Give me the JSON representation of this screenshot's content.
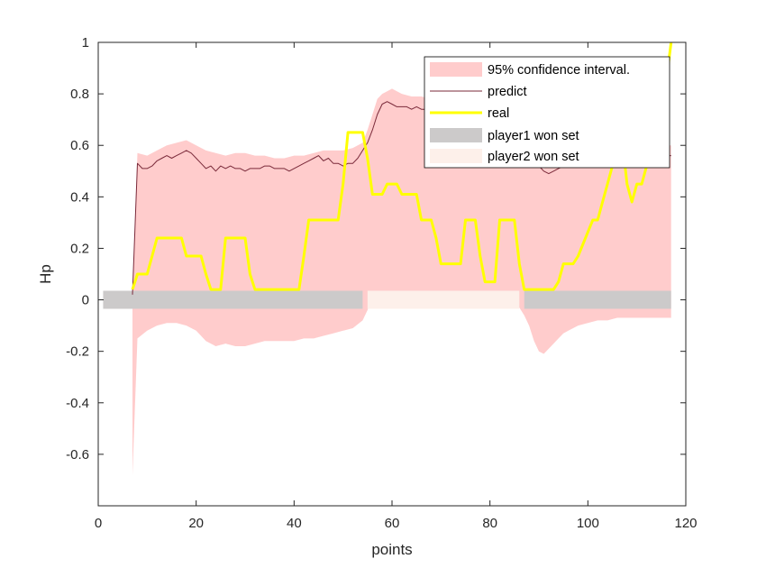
{
  "chart_data": {
    "type": "line",
    "xlabel": "points",
    "ylabel": "Hp",
    "xlim": [
      0,
      120
    ],
    "ylim": [
      -0.8,
      1
    ],
    "xticks": [
      0,
      20,
      40,
      60,
      80,
      100,
      120
    ],
    "yticks": [
      1,
      0.8,
      0.6,
      0.4,
      0.2,
      0,
      -0.2,
      -0.4,
      -0.6
    ],
    "xtick_labels": [
      "0",
      "20",
      "40",
      "60",
      "80",
      "100",
      "120"
    ],
    "ytick_labels": [
      "1",
      "0.8",
      "0.6",
      "0.4",
      "0.2",
      "0",
      "-0.2",
      "-0.4",
      "-0.6"
    ],
    "grid": false,
    "legend_position": "top-right",
    "colors": {
      "confidence": "#ffcccc",
      "predict": "#7a2a3a",
      "real": "#ffff00",
      "player1": "#cccaca",
      "player2": "#fdf0ea"
    },
    "legend": {
      "confidence": "95% confidence interval.",
      "predict": "predict",
      "real": "real",
      "player1": "player1 won set",
      "player2": "player2 won set"
    },
    "series": [
      {
        "key": "predict",
        "x": [
          7,
          8,
          9,
          10,
          11,
          12,
          13,
          14,
          15,
          16,
          17,
          18,
          19,
          20,
          21,
          22,
          23,
          24,
          25,
          26,
          27,
          28,
          29,
          30,
          31,
          32,
          33,
          34,
          35,
          36,
          37,
          38,
          39,
          40,
          41,
          42,
          43,
          44,
          45,
          46,
          47,
          48,
          49,
          50,
          51,
          52,
          53,
          54,
          55,
          56,
          57,
          58,
          59,
          60,
          61,
          62,
          63,
          64,
          65,
          66,
          67,
          68,
          69,
          70,
          71,
          72,
          73,
          74,
          75,
          76,
          77,
          78,
          79,
          80,
          81,
          82,
          83,
          84,
          85,
          86,
          87,
          88,
          89,
          90,
          91,
          92,
          93,
          94,
          95,
          96,
          97,
          98,
          99,
          100,
          101,
          102,
          103,
          104,
          105,
          106,
          107,
          108,
          109,
          110,
          111,
          112,
          113,
          114,
          115,
          116,
          117
        ],
        "y": [
          0.02,
          0.53,
          0.51,
          0.51,
          0.52,
          0.54,
          0.55,
          0.56,
          0.55,
          0.56,
          0.57,
          0.58,
          0.57,
          0.55,
          0.53,
          0.51,
          0.52,
          0.5,
          0.52,
          0.51,
          0.52,
          0.51,
          0.51,
          0.5,
          0.51,
          0.51,
          0.51,
          0.52,
          0.52,
          0.51,
          0.51,
          0.51,
          0.5,
          0.51,
          0.52,
          0.53,
          0.54,
          0.55,
          0.56,
          0.54,
          0.55,
          0.53,
          0.53,
          0.52,
          0.53,
          0.53,
          0.55,
          0.58,
          0.61,
          0.66,
          0.72,
          0.76,
          0.77,
          0.76,
          0.75,
          0.75,
          0.75,
          0.74,
          0.75,
          0.74,
          0.74,
          0.73,
          0.72,
          0.72,
          0.71,
          0.7,
          0.7,
          0.69,
          0.68,
          0.67,
          0.67,
          0.66,
          0.65,
          0.65,
          0.64,
          0.63,
          0.62,
          0.62,
          0.61,
          0.6,
          0.58,
          0.56,
          0.54,
          0.52,
          0.5,
          0.49,
          0.5,
          0.51,
          0.52,
          0.52,
          0.53,
          0.53,
          0.54,
          0.54,
          0.55,
          0.55,
          0.55,
          0.56,
          0.56,
          0.56,
          0.56,
          0.55,
          0.55,
          0.54,
          0.55,
          0.55,
          0.55,
          0.56,
          0.56,
          0.56,
          0.56
        ]
      },
      {
        "key": "real",
        "x": [
          7,
          8,
          10,
          11,
          12,
          17,
          18,
          21,
          22,
          23,
          25,
          26,
          27,
          30,
          31,
          32,
          33,
          41,
          42,
          43,
          49,
          50,
          51,
          54,
          55,
          56,
          58,
          59,
          61,
          62,
          65,
          66,
          68,
          69,
          70,
          71,
          74,
          75,
          77,
          78,
          79,
          81,
          82,
          85,
          86,
          87,
          88,
          91,
          92,
          93,
          94,
          95,
          97,
          98,
          101,
          102,
          103,
          104,
          105,
          106,
          107,
          108,
          109,
          110,
          111,
          112,
          113,
          114,
          115,
          116,
          117
        ],
        "y": [
          0.04,
          0.1,
          0.1,
          0.17,
          0.24,
          0.24,
          0.17,
          0.17,
          0.1,
          0.04,
          0.04,
          0.24,
          0.24,
          0.24,
          0.1,
          0.04,
          0.04,
          0.04,
          0.17,
          0.31,
          0.31,
          0.45,
          0.65,
          0.65,
          0.55,
          0.41,
          0.41,
          0.45,
          0.45,
          0.41,
          0.41,
          0.31,
          0.31,
          0.24,
          0.14,
          0.14,
          0.14,
          0.31,
          0.31,
          0.17,
          0.07,
          0.07,
          0.31,
          0.31,
          0.14,
          0.04,
          0.04,
          0.04,
          0.04,
          0.04,
          0.07,
          0.14,
          0.14,
          0.17,
          0.31,
          0.31,
          0.38,
          0.45,
          0.52,
          0.62,
          0.62,
          0.45,
          0.38,
          0.45,
          0.45,
          0.52,
          0.58,
          0.65,
          0.72,
          0.85,
          1.0
        ]
      }
    ],
    "confidence_interval": {
      "x": [
        7,
        8,
        10,
        12,
        14,
        16,
        18,
        20,
        22,
        24,
        26,
        28,
        30,
        32,
        34,
        36,
        38,
        40,
        42,
        44,
        46,
        48,
        50,
        52,
        54,
        55,
        56,
        57,
        58,
        59,
        60,
        62,
        64,
        66,
        68,
        70,
        72,
        74,
        76,
        78,
        80,
        82,
        84,
        86,
        87,
        88,
        89,
        90,
        91,
        92,
        93,
        94,
        95,
        96,
        98,
        100,
        102,
        104,
        106,
        108,
        110,
        112,
        114,
        116,
        117
      ],
      "upper": [
        0.03,
        0.57,
        0.56,
        0.58,
        0.6,
        0.61,
        0.62,
        0.6,
        0.58,
        0.57,
        0.56,
        0.57,
        0.57,
        0.56,
        0.56,
        0.55,
        0.55,
        0.56,
        0.56,
        0.57,
        0.58,
        0.58,
        0.58,
        0.59,
        0.61,
        0.66,
        0.72,
        0.78,
        0.8,
        0.81,
        0.82,
        0.8,
        0.79,
        0.79,
        0.78,
        0.77,
        0.76,
        0.75,
        0.74,
        0.74,
        0.74,
        0.72,
        0.7,
        0.68,
        0.65,
        0.6,
        0.55,
        0.52,
        0.51,
        0.52,
        0.53,
        0.54,
        0.55,
        0.56,
        0.57,
        0.59,
        0.61,
        0.63,
        0.64,
        0.64,
        0.63,
        0.62,
        0.61,
        0.6,
        0.6
      ],
      "lower": [
        -0.68,
        -0.15,
        -0.12,
        -0.1,
        -0.09,
        -0.09,
        -0.1,
        -0.12,
        -0.16,
        -0.18,
        -0.17,
        -0.18,
        -0.18,
        -0.17,
        -0.16,
        -0.16,
        -0.16,
        -0.16,
        -0.15,
        -0.15,
        -0.14,
        -0.13,
        -0.12,
        -0.11,
        -0.08,
        -0.04,
        0.01,
        0.02,
        0.03,
        0.03,
        0.03,
        0.02,
        0.02,
        0.02,
        0.02,
        0.01,
        0.01,
        0.0,
        0.0,
        -0.01,
        -0.02,
        -0.03,
        -0.03,
        -0.03,
        -0.06,
        -0.1,
        -0.16,
        -0.2,
        -0.21,
        -0.19,
        -0.17,
        -0.15,
        -0.13,
        -0.12,
        -0.1,
        -0.09,
        -0.08,
        -0.08,
        -0.07,
        -0.07,
        -0.07,
        -0.07,
        -0.07,
        -0.07,
        -0.07
      ]
    },
    "sets": [
      {
        "key": "player1",
        "x_start": 1,
        "x_end": 54,
        "y": 0
      },
      {
        "key": "player2",
        "x_start": 55,
        "x_end": 86,
        "y": 0
      },
      {
        "key": "player1",
        "x_start": 87,
        "x_end": 117,
        "y": 0
      }
    ]
  }
}
